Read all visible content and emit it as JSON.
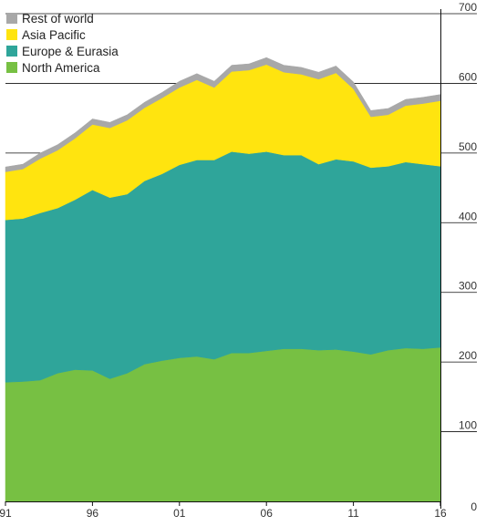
{
  "chart_data": {
    "type": "area",
    "stacked": true,
    "title": "",
    "xlabel": "",
    "ylabel": "",
    "x": [
      1991,
      1992,
      1993,
      1994,
      1995,
      1996,
      1997,
      1998,
      1999,
      2000,
      2001,
      2002,
      2003,
      2004,
      2005,
      2006,
      2007,
      2008,
      2009,
      2010,
      2011,
      2012,
      2013,
      2014,
      2015,
      2016
    ],
    "x_tick_values": [
      1991,
      1996,
      2001,
      2006,
      2011,
      2016
    ],
    "x_tick_labels": [
      "91",
      "96",
      "01",
      "06",
      "11",
      "16"
    ],
    "ylim": [
      0,
      700
    ],
    "y_ticks": [
      0,
      100,
      200,
      300,
      400,
      500,
      600,
      700
    ],
    "y_tick_labels": [
      "0",
      "100",
      "200",
      "300",
      "400",
      "500",
      "600",
      "700"
    ],
    "y_axis_position": "right",
    "legend_position": "top-left",
    "series": [
      {
        "name": "North America",
        "color": "#77c043",
        "values": [
          171,
          172,
          174,
          184,
          189,
          188,
          176,
          184,
          197,
          202,
          206,
          208,
          204,
          213,
          213,
          216,
          219,
          219,
          217,
          218,
          215,
          211,
          217,
          220,
          219,
          221
        ]
      },
      {
        "name": "Europe & Eurasia",
        "color": "#2fa59a",
        "values": [
          233,
          234,
          240,
          237,
          244,
          259,
          260,
          257,
          263,
          268,
          277,
          282,
          286,
          289,
          286,
          286,
          278,
          278,
          267,
          273,
          273,
          268,
          264,
          267,
          265,
          260
        ]
      },
      {
        "name": "Asia Pacific",
        "color": "#ffe40f",
        "values": [
          69,
          71,
          78,
          83,
          88,
          94,
          100,
          106,
          105,
          109,
          111,
          115,
          104,
          115,
          120,
          125,
          119,
          116,
          122,
          124,
          104,
          73,
          74,
          81,
          87,
          94
        ]
      },
      {
        "name": "Rest of world",
        "color": "#a8a8a8",
        "values": [
          7,
          7,
          8,
          8,
          8,
          8,
          8,
          8,
          8,
          8,
          9,
          9,
          9,
          9,
          9,
          10,
          10,
          10,
          10,
          10,
          10,
          9,
          9,
          9,
          9,
          9
        ]
      }
    ]
  }
}
